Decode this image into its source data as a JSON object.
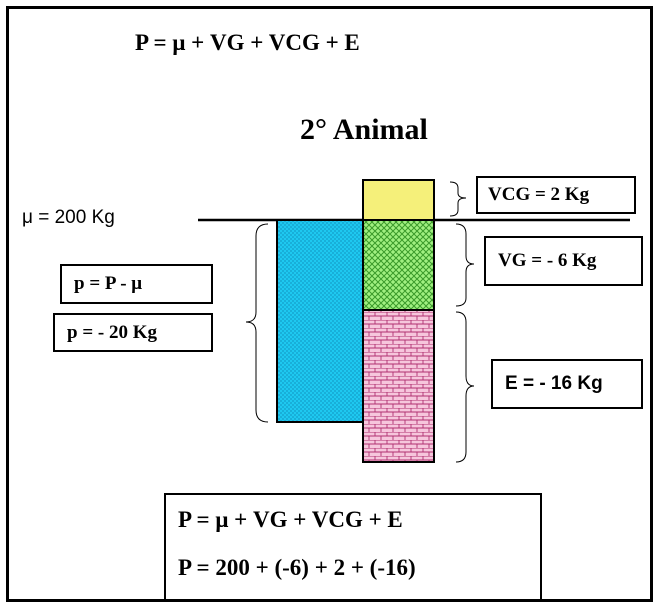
{
  "top_formula": "P = μ + VG + VCG + E",
  "title": "2° Animal",
  "mean_label": "μ = 200 Kg",
  "left_boxes": {
    "deviation_formula": "p = P - μ",
    "deviation_value": "p = - 20 Kg"
  },
  "right_boxes": {
    "vcg": "VCG = 2 Kg",
    "vg": "VG =  - 6 Kg",
    "e": "E = - 16 Kg"
  },
  "bottom_box": {
    "formula": "P = μ + VG + VCG + E",
    "calculation": "P = 200 + (-6) + 2 + (-16)"
  },
  "colors": {
    "phenotype_bar": "#1ec8f0",
    "vcg_block": "#f5f07a",
    "vg_block": "#90e870",
    "e_block": "#f0b8d4"
  }
}
